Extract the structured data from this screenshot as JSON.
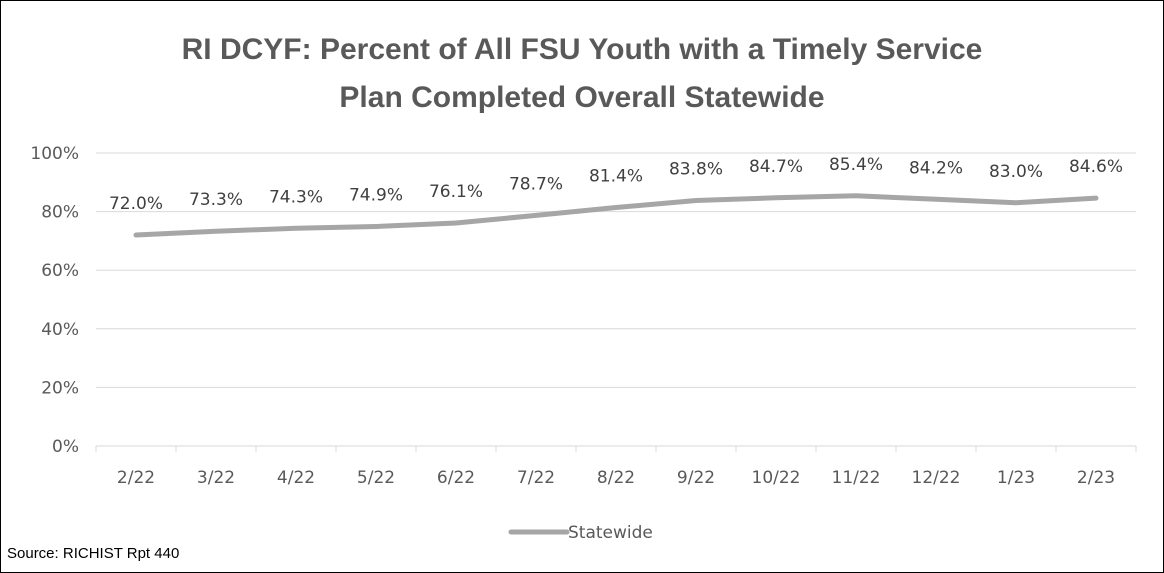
{
  "chart_data": {
    "type": "line",
    "title_lines": [
      "RI DCYF: Percent of All FSU Youth with a Timely Service",
      "Plan Completed Overall Statewide"
    ],
    "categories": [
      "2/22",
      "3/22",
      "4/22",
      "5/22",
      "6/22",
      "7/22",
      "8/22",
      "9/22",
      "10/22",
      "11/22",
      "12/22",
      "1/23",
      "2/23"
    ],
    "series": [
      {
        "name": "Statewide",
        "values": [
          72.0,
          73.3,
          74.3,
          74.9,
          76.1,
          78.7,
          81.4,
          83.8,
          84.7,
          85.4,
          84.2,
          83.0,
          84.6
        ],
        "labels": [
          "72.0%",
          "73.3%",
          "74.3%",
          "74.9%",
          "76.1%",
          "78.7%",
          "81.4%",
          "83.8%",
          "84.7%",
          "85.4%",
          "84.2%",
          "83.0%",
          "84.6%"
        ],
        "color": "#a6a6a6"
      }
    ],
    "yticks": [
      0,
      20,
      40,
      60,
      80,
      100
    ],
    "ytick_labels": [
      "0%",
      "20%",
      "40%",
      "60%",
      "80%",
      "100%"
    ],
    "ylim": [
      0,
      100
    ],
    "grid": true,
    "grid_color": "#d9d9d9",
    "legend_position": "bottom"
  },
  "source": "Source: RICHIST Rpt 440"
}
